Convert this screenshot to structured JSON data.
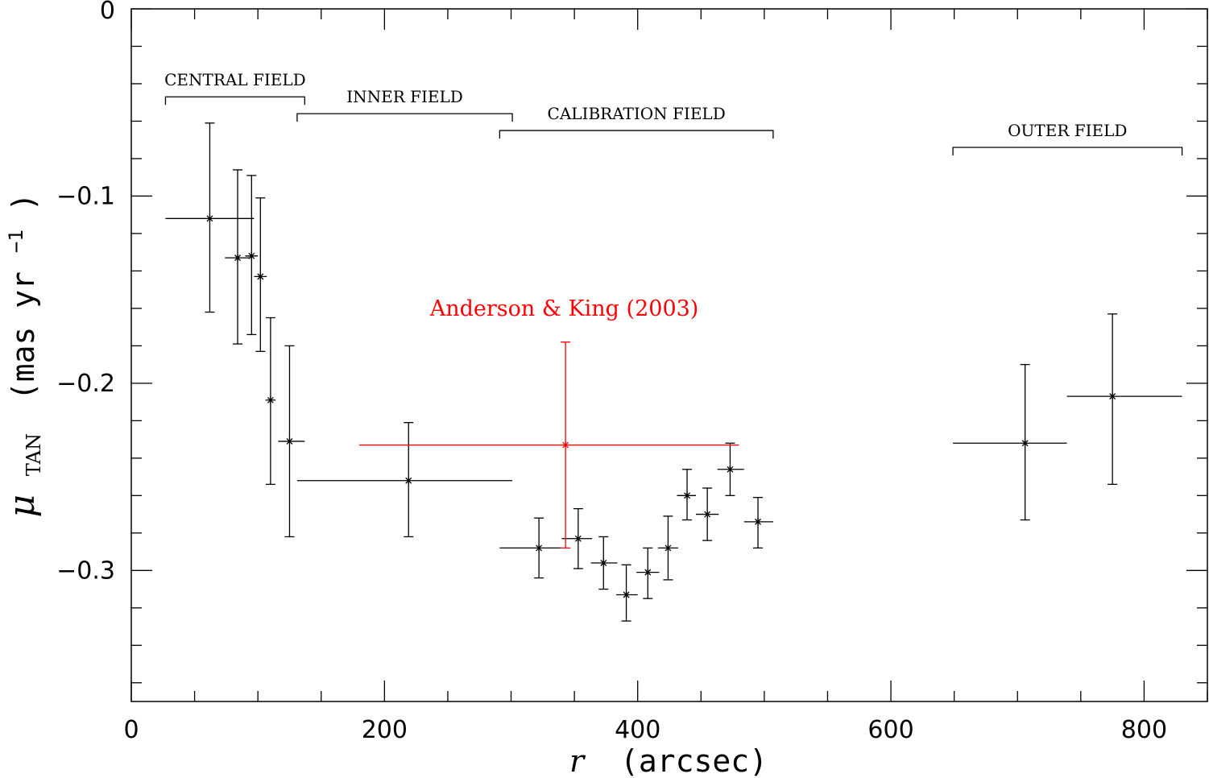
{
  "chart_data": {
    "type": "scatter",
    "xlabel": {
      "var": "r",
      "units": "(arcsec)"
    },
    "ylabel": {
      "var": "μ",
      "sub": "TAN",
      "units": "(mas yr",
      "sup": "−1",
      "close": ")"
    },
    "xlim": [
      0,
      850
    ],
    "ylim": [
      -0.37,
      0
    ],
    "xticks": [
      0,
      200,
      400,
      600,
      800
    ],
    "xtick_labels": [
      "0",
      "200",
      "400",
      "600",
      "800"
    ],
    "yticks": [
      0,
      -0.1,
      -0.2,
      -0.3
    ],
    "ytick_labels": [
      "0",
      "−0.1",
      "−0.2",
      "−0.3"
    ],
    "grid": false,
    "series": [
      {
        "color": "#000000",
        "points": [
          {
            "x": 62,
            "y": -0.112,
            "xlo": 27,
            "xhi": 97,
            "ylo": -0.162,
            "yhi": -0.061
          },
          {
            "x": 84,
            "y": -0.133,
            "xlo": 74,
            "xhi": 94,
            "ylo": -0.179,
            "yhi": -0.086
          },
          {
            "x": 95,
            "y": -0.132,
            "xlo": 90,
            "xhi": 100,
            "ylo": -0.174,
            "yhi": -0.089
          },
          {
            "x": 102,
            "y": -0.143,
            "xlo": 97,
            "xhi": 107,
            "ylo": -0.183,
            "yhi": -0.101
          },
          {
            "x": 110,
            "y": -0.209,
            "xlo": 106,
            "xhi": 114,
            "ylo": -0.254,
            "yhi": -0.165
          },
          {
            "x": 125,
            "y": -0.231,
            "xlo": 116,
            "xhi": 137,
            "ylo": -0.282,
            "yhi": -0.18
          },
          {
            "x": 219,
            "y": -0.252,
            "xlo": 131,
            "xhi": 301,
            "ylo": -0.282,
            "yhi": -0.221
          },
          {
            "x": 322,
            "y": -0.288,
            "xlo": 291,
            "xhi": 340,
            "ylo": -0.304,
            "yhi": -0.272
          },
          {
            "x": 353,
            "y": -0.283,
            "xlo": 340,
            "xhi": 364,
            "ylo": -0.299,
            "yhi": -0.267
          },
          {
            "x": 373,
            "y": -0.296,
            "xlo": 363,
            "xhi": 384,
            "ylo": -0.31,
            "yhi": -0.282
          },
          {
            "x": 391,
            "y": -0.313,
            "xlo": 383,
            "xhi": 400,
            "ylo": -0.327,
            "yhi": -0.297
          },
          {
            "x": 408,
            "y": -0.301,
            "xlo": 399,
            "xhi": 417,
            "ylo": -0.315,
            "yhi": -0.288
          },
          {
            "x": 424,
            "y": -0.288,
            "xlo": 416,
            "xhi": 432,
            "ylo": -0.305,
            "yhi": -0.271
          },
          {
            "x": 439,
            "y": -0.26,
            "xlo": 431,
            "xhi": 446,
            "ylo": -0.273,
            "yhi": -0.246
          },
          {
            "x": 455,
            "y": -0.27,
            "xlo": 446,
            "xhi": 464,
            "ylo": -0.284,
            "yhi": -0.256
          },
          {
            "x": 473,
            "y": -0.246,
            "xlo": 463,
            "xhi": 484,
            "ylo": -0.26,
            "yhi": -0.232
          },
          {
            "x": 495,
            "y": -0.274,
            "xlo": 484,
            "xhi": 507,
            "ylo": -0.288,
            "yhi": -0.261
          },
          {
            "x": 706,
            "y": -0.232,
            "xlo": 649,
            "xhi": 739,
            "ylo": -0.273,
            "yhi": -0.19
          },
          {
            "x": 775,
            "y": -0.207,
            "xlo": 739,
            "xhi": 830,
            "ylo": -0.254,
            "yhi": -0.163
          }
        ]
      },
      {
        "color": "#ff0000",
        "points": [
          {
            "x": 343,
            "y": -0.233,
            "xlo": 180,
            "xhi": 480,
            "ylo": -0.288,
            "yhi": -0.178
          }
        ]
      }
    ],
    "annotations": [
      {
        "text": "Anderson & King (2003)",
        "x": 342,
        "y": -0.164,
        "color": "#ff0000"
      }
    ],
    "field_brackets": [
      {
        "label": "CENTRAL FIELD",
        "x0": 27,
        "x1": 137,
        "y": -0.047
      },
      {
        "label": "INNER FIELD",
        "x0": 131,
        "x1": 301,
        "y": -0.056
      },
      {
        "label": "CALIBRATION FIELD",
        "x0": 291,
        "x1": 507,
        "y": -0.065
      },
      {
        "label": "OUTER FIELD",
        "x0": 649,
        "x1": 830,
        "y": -0.074
      }
    ]
  }
}
